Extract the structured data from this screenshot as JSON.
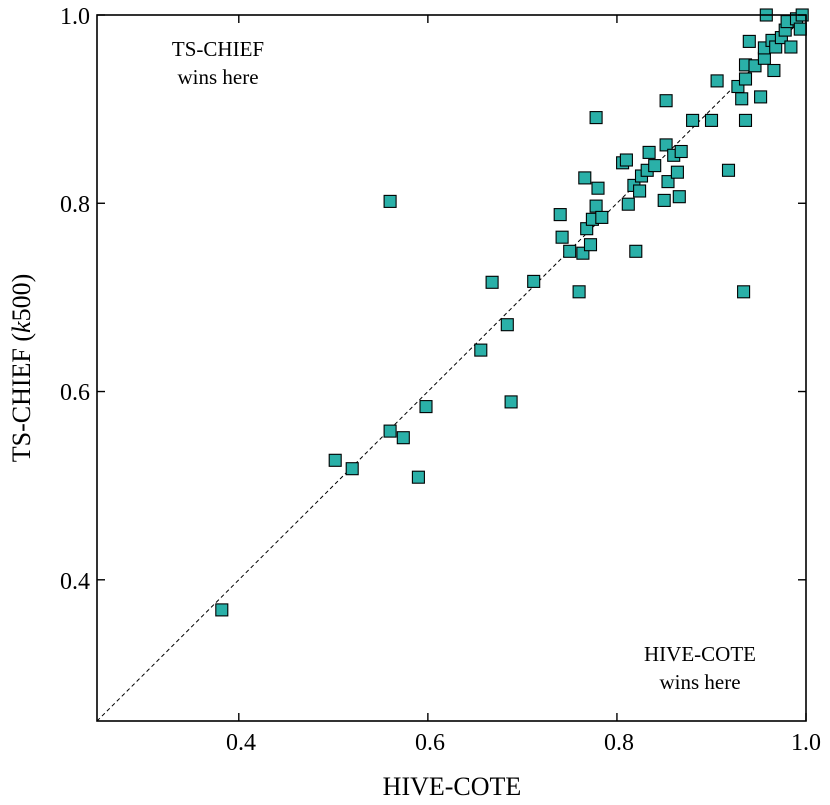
{
  "chart_data": {
    "type": "scatter",
    "xlabel": "HIVE-COTE",
    "ylabel_prefix": "TS-CHIEF (",
    "ylabel_italic": "k",
    "ylabel_suffix": "500)",
    "xlim": [
      0.25,
      1.0
    ],
    "ylim": [
      0.25,
      1.0
    ],
    "x_ticks": [
      "0.4",
      "0.6",
      "0.8",
      "1.0"
    ],
    "y_ticks": [
      "0.4",
      "0.6",
      "0.8",
      "1.0"
    ],
    "grid": false,
    "reference_line": "y = x (dashed diagonal)",
    "marker": {
      "shape": "square",
      "fill": "#2ab0a8",
      "edge": "#000000"
    },
    "annotations": {
      "top_left": [
        "TS-CHIEF",
        "wins here"
      ],
      "bottom_right": [
        "HIVE-COTE",
        "wins here"
      ]
    },
    "points": [
      [
        0.382,
        0.368
      ],
      [
        0.502,
        0.527
      ],
      [
        0.52,
        0.518
      ],
      [
        0.56,
        0.558
      ],
      [
        0.574,
        0.551
      ],
      [
        0.59,
        0.509
      ],
      [
        0.598,
        0.584
      ],
      [
        0.56,
        0.802
      ],
      [
        0.656,
        0.644
      ],
      [
        0.668,
        0.716
      ],
      [
        0.684,
        0.671
      ],
      [
        0.688,
        0.589
      ],
      [
        0.712,
        0.717
      ],
      [
        0.74,
        0.788
      ],
      [
        0.742,
        0.764
      ],
      [
        0.75,
        0.749
      ],
      [
        0.76,
        0.706
      ],
      [
        0.764,
        0.747
      ],
      [
        0.766,
        0.827
      ],
      [
        0.768,
        0.773
      ],
      [
        0.772,
        0.756
      ],
      [
        0.774,
        0.783
      ],
      [
        0.778,
        0.797
      ],
      [
        0.778,
        0.891
      ],
      [
        0.78,
        0.816
      ],
      [
        0.784,
        0.785
      ],
      [
        0.806,
        0.843
      ],
      [
        0.81,
        0.846
      ],
      [
        0.812,
        0.799
      ],
      [
        0.818,
        0.819
      ],
      [
        0.82,
        0.749
      ],
      [
        0.824,
        0.813
      ],
      [
        0.826,
        0.829
      ],
      [
        0.832,
        0.835
      ],
      [
        0.834,
        0.854
      ],
      [
        0.84,
        0.84
      ],
      [
        0.85,
        0.803
      ],
      [
        0.852,
        0.862
      ],
      [
        0.852,
        0.909
      ],
      [
        0.854,
        0.823
      ],
      [
        0.86,
        0.851
      ],
      [
        0.864,
        0.833
      ],
      [
        0.866,
        0.807
      ],
      [
        0.868,
        0.855
      ],
      [
        0.88,
        0.888
      ],
      [
        0.9,
        0.888
      ],
      [
        0.906,
        0.93
      ],
      [
        0.918,
        0.835
      ],
      [
        0.928,
        0.924
      ],
      [
        0.932,
        0.911
      ],
      [
        0.934,
        0.706
      ],
      [
        0.936,
        0.888
      ],
      [
        0.936,
        0.947
      ],
      [
        0.936,
        0.932
      ],
      [
        0.94,
        0.972
      ],
      [
        0.946,
        0.946
      ],
      [
        0.952,
        0.913
      ],
      [
        0.956,
        0.954
      ],
      [
        0.956,
        0.965
      ],
      [
        0.958,
        1.0
      ],
      [
        0.964,
        0.973
      ],
      [
        0.966,
        0.941
      ],
      [
        0.968,
        0.966
      ],
      [
        0.974,
        0.976
      ],
      [
        0.978,
        0.984
      ],
      [
        0.98,
        0.993
      ],
      [
        0.984,
        0.966
      ],
      [
        0.99,
        0.996
      ],
      [
        0.994,
        0.985
      ],
      [
        0.996,
        1.0
      ]
    ]
  }
}
